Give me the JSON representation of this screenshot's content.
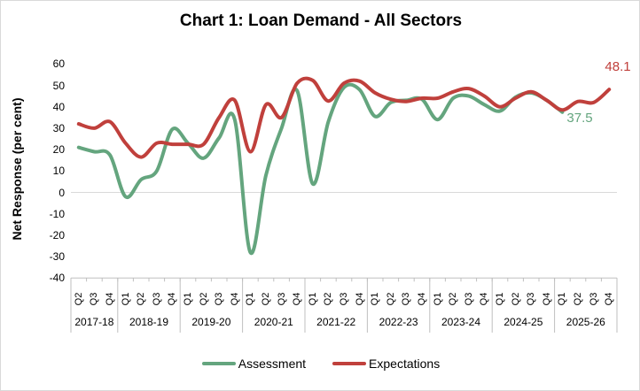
{
  "chart_data": {
    "type": "line",
    "title": "Chart 1: Loan Demand - All Sectors",
    "xlabel": "",
    "ylabel": "Net Response (per cent)",
    "ylim": [
      -40,
      60
    ],
    "y_ticks": [
      60,
      50,
      40,
      30,
      20,
      10,
      0,
      -10,
      -20,
      -30,
      -40
    ],
    "grid": "horizontal zero-line only",
    "legend_position": "bottom-center",
    "line_style": "smoothed",
    "categories": [
      "Q2",
      "Q3",
      "Q4",
      "Q1",
      "Q2",
      "Q3",
      "Q4",
      "Q1",
      "Q2",
      "Q3",
      "Q4",
      "Q1",
      "Q2",
      "Q3",
      "Q4",
      "Q1",
      "Q2",
      "Q3",
      "Q4",
      "Q1",
      "Q2",
      "Q3",
      "Q4",
      "Q1",
      "Q2",
      "Q3",
      "Q4",
      "Q1",
      "Q2",
      "Q3",
      "Q4",
      "Q1",
      "Q2",
      "Q3",
      "Q4"
    ],
    "x_groups": [
      {
        "year": "2017-18",
        "count": 3
      },
      {
        "year": "2018-19",
        "count": 4
      },
      {
        "year": "2019-20",
        "count": 4
      },
      {
        "year": "2020-21",
        "count": 4
      },
      {
        "year": "2021-22",
        "count": 4
      },
      {
        "year": "2022-23",
        "count": 4
      },
      {
        "year": "2023-24",
        "count": 4
      },
      {
        "year": "2024-25",
        "count": 4
      },
      {
        "year": "2025-26",
        "count": 4
      }
    ],
    "series": [
      {
        "name": "Assessment",
        "color": "#64A57E",
        "values": [
          21,
          19,
          17.5,
          -2,
          6,
          10,
          29.5,
          23,
          16,
          25.5,
          34,
          -28,
          8,
          30,
          47.5,
          4,
          33,
          49,
          48,
          35.5,
          42,
          43,
          43.5,
          34,
          44,
          45,
          41,
          38,
          44.5,
          46.5,
          43,
          37.5,
          null,
          null,
          null
        ]
      },
      {
        "name": "Expectations",
        "color": "#C0403C",
        "values": [
          32,
          30,
          33,
          23,
          16.5,
          23,
          22.5,
          22.5,
          22.5,
          35,
          43,
          19,
          41,
          35,
          51,
          52.3,
          42.7,
          51,
          52,
          46.5,
          43.5,
          42.5,
          44,
          44,
          47,
          48.5,
          45,
          40,
          44,
          47,
          43,
          38.5,
          42.5,
          42,
          48.1
        ]
      }
    ],
    "annotations": [
      {
        "text": "48.1",
        "series": "Expectations",
        "color": "#C0403C"
      },
      {
        "text": "37.5",
        "series": "Assessment",
        "color": "#64A57E"
      }
    ]
  }
}
